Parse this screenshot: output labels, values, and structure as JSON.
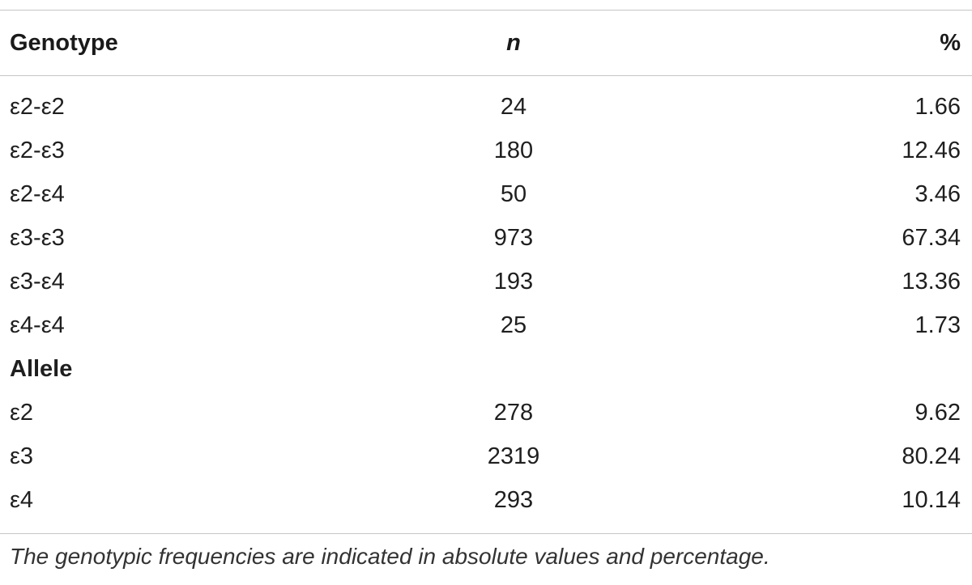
{
  "header": {
    "genotype": "Genotype",
    "n": "n",
    "percent": "%"
  },
  "genotype_rows": [
    {
      "label": "ε2-ε2",
      "n": "24",
      "pct": "1.66"
    },
    {
      "label": "ε2-ε3",
      "n": "180",
      "pct": "12.46"
    },
    {
      "label": "ε2-ε4",
      "n": "50",
      "pct": "3.46"
    },
    {
      "label": "ε3-ε3",
      "n": "973",
      "pct": "67.34"
    },
    {
      "label": "ε3-ε4",
      "n": "193",
      "pct": "13.36"
    },
    {
      "label": "ε4-ε4",
      "n": "25",
      "pct": "1.73"
    }
  ],
  "allele_section": "Allele",
  "allele_rows": [
    {
      "label": "ε2",
      "n": "278",
      "pct": "9.62"
    },
    {
      "label": "ε3",
      "n": "2319",
      "pct": "80.24"
    },
    {
      "label": "ε4",
      "n": "293",
      "pct": "10.14"
    }
  ],
  "footnote": "The genotypic frequencies are indicated in absolute values and percentage."
}
